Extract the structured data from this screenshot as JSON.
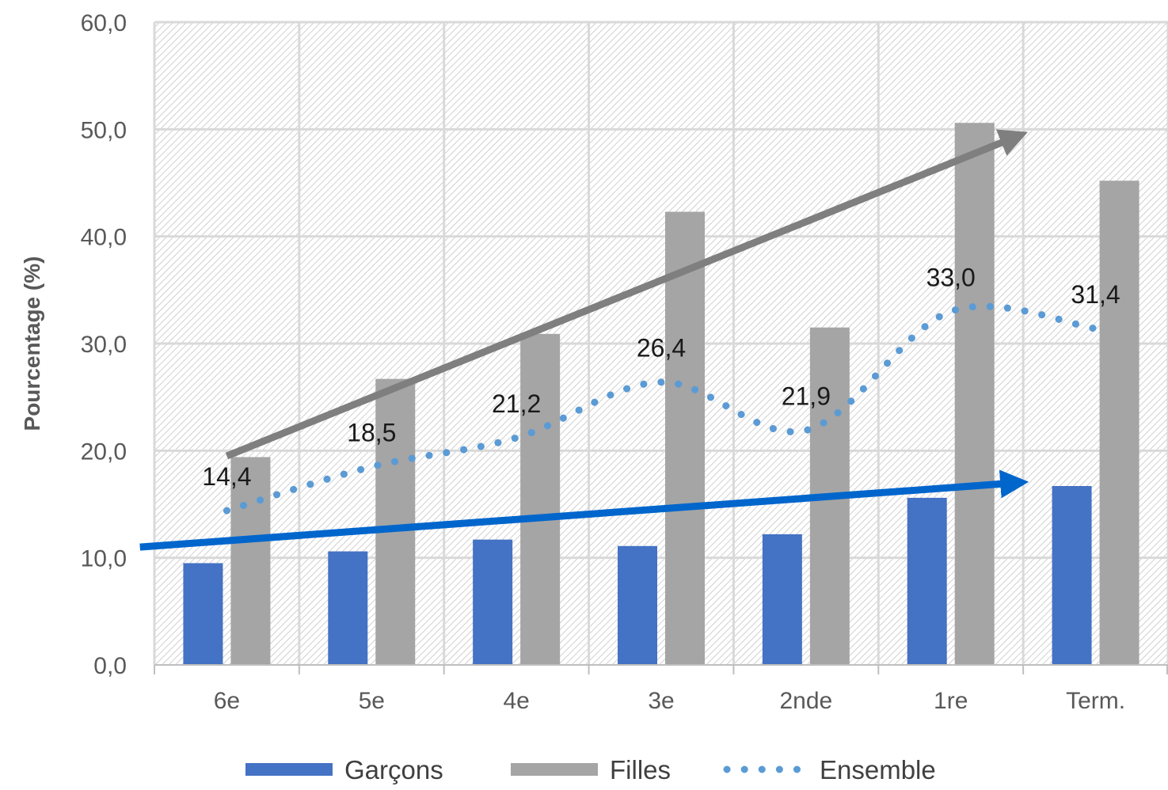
{
  "chart_data": {
    "type": "bar",
    "ylabel": "Pourcentage (%)",
    "xlabel": "",
    "ylim": [
      0,
      60
    ],
    "y_ticks": [
      "0,0",
      "10,0",
      "20,0",
      "30,0",
      "40,0",
      "50,0",
      "60,0"
    ],
    "categories": [
      "6e",
      "5e",
      "4e",
      "3e",
      "2nde",
      "1re",
      "Term."
    ],
    "series": [
      {
        "name": "Garçons",
        "type": "bar",
        "color": "#4472c4",
        "values": [
          9.5,
          10.6,
          11.7,
          11.1,
          12.2,
          15.6,
          16.7
        ]
      },
      {
        "name": "Filles",
        "type": "bar",
        "color": "#a5a5a5",
        "values": [
          19.4,
          26.7,
          30.9,
          42.3,
          31.5,
          50.6,
          45.2
        ]
      },
      {
        "name": "Ensemble",
        "type": "line",
        "style": "dotted",
        "color": "#5b9bd5",
        "values": [
          14.4,
          18.5,
          21.2,
          26.4,
          21.9,
          33.0,
          31.4
        ]
      }
    ],
    "data_labels": [
      "14,4",
      "18,5",
      "21,2",
      "26,4",
      "21,9",
      "33,0",
      "31,4"
    ],
    "trend_arrows": [
      {
        "color": "#7f7f7f",
        "from": [
          0,
          19.5
        ],
        "to": [
          5.45,
          49.3
        ]
      },
      {
        "color": "#0066cc",
        "from": [
          -0.6,
          11.0
        ],
        "to": [
          5.45,
          17.0
        ]
      }
    ],
    "grid": true,
    "legend_position": "bottom"
  }
}
